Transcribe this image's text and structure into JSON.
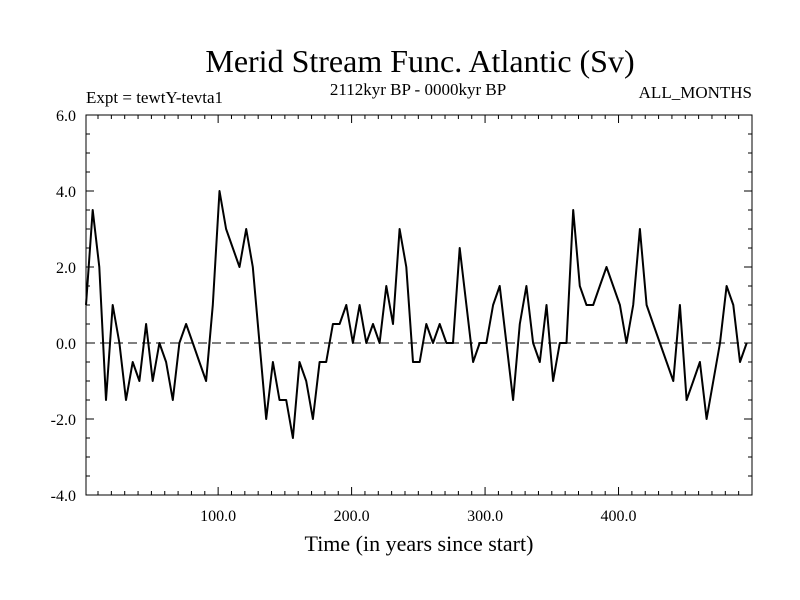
{
  "chart_data": {
    "type": "line",
    "title": "Merid Stream Func. Atlantic (Sv)",
    "subtitle_left": "Expt = tewtY-tevta1",
    "subtitle_center": "2112kyr BP - 0000kyr BP",
    "subtitle_right": "ALL_MONTHS",
    "xlabel": "Time (in years since start)",
    "ylabel": "",
    "xlim": [
      1,
      500
    ],
    "ylim": [
      -4.0,
      6.0
    ],
    "x_ticks": [
      100,
      200,
      300,
      400
    ],
    "x_tick_labels": [
      "100.0",
      "200.0",
      "300.0",
      "400.0"
    ],
    "y_ticks": [
      -4,
      -2,
      0,
      2,
      4,
      6
    ],
    "y_tick_labels": [
      "-4.0",
      "-2.0",
      "0.0",
      "2.0",
      "4.0",
      "6.0"
    ],
    "zero_line": "dashed",
    "series": [
      {
        "name": "Merid Stream Func. Atlantic",
        "x_start": 1,
        "x_step": 5,
        "values": [
          1.0,
          3.5,
          2.0,
          -1.5,
          1.0,
          0.0,
          -1.5,
          -0.5,
          -1.0,
          0.5,
          -1.0,
          0.0,
          -0.5,
          -1.5,
          0.0,
          0.5,
          0.0,
          -0.5,
          -1.0,
          1.0,
          4.0,
          3.0,
          2.5,
          2.0,
          3.0,
          2.0,
          0.0,
          -2.0,
          -0.5,
          -1.5,
          -1.5,
          -2.5,
          -0.5,
          -1.0,
          -2.0,
          -0.5,
          -0.5,
          0.5,
          0.5,
          1.0,
          0.0,
          1.0,
          0.0,
          0.5,
          0.0,
          1.5,
          0.5,
          3.0,
          2.0,
          -0.5,
          -0.5,
          0.5,
          0.0,
          0.5,
          0.0,
          0.0,
          2.5,
          1.0,
          -0.5,
          0.0,
          0.0,
          1.0,
          1.5,
          0.0,
          -1.5,
          0.5,
          1.5,
          0.0,
          -0.5,
          1.0,
          -1.0,
          0.0,
          0.0,
          3.5,
          1.5,
          1.0,
          1.0,
          1.5,
          2.0,
          1.5,
          1.0,
          0.0,
          1.0,
          3.0,
          1.0,
          0.5,
          0.0,
          -0.5,
          -1.0,
          1.0,
          -1.5,
          -1.0,
          -0.5,
          -2.0,
          -1.0,
          0.0,
          1.5,
          1.0,
          -0.5,
          0.0
        ]
      }
    ]
  }
}
